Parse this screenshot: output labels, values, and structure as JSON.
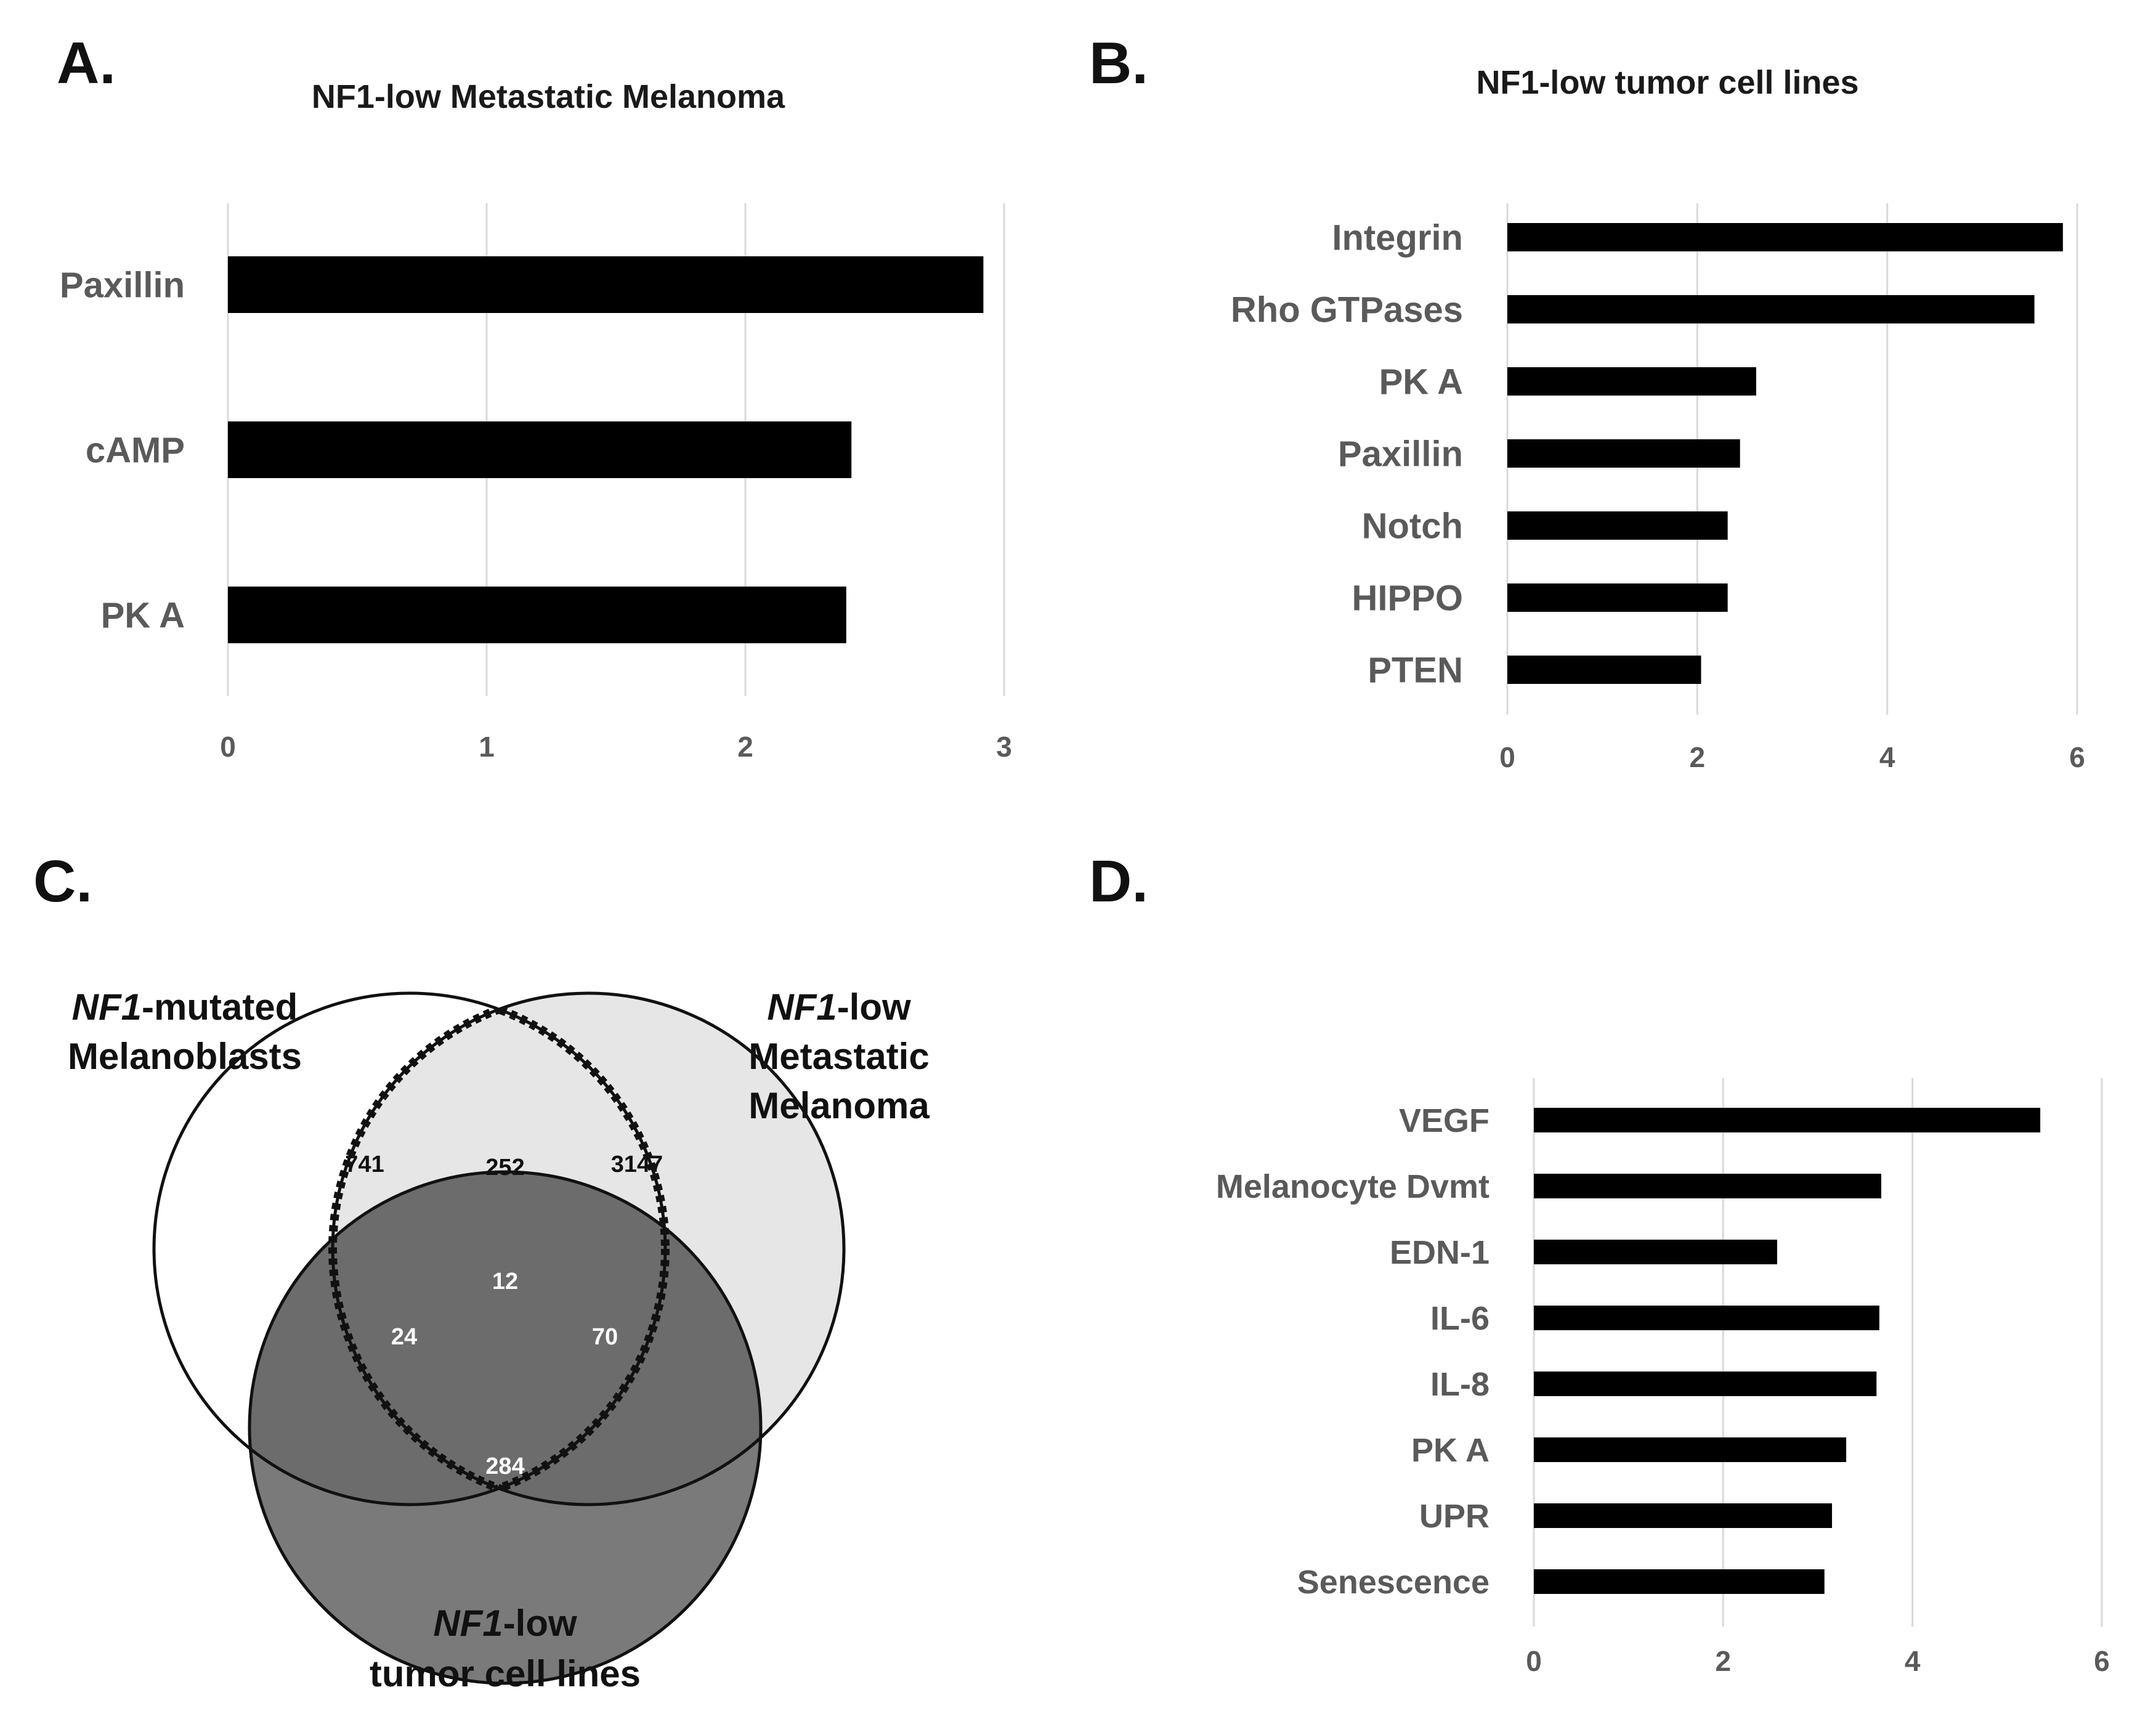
{
  "panels": {
    "a": {
      "letter": "A."
    },
    "b": {
      "letter": "B."
    },
    "c": {
      "letter": "C."
    },
    "d": {
      "letter": "D."
    }
  },
  "chart_data": [
    {
      "id": "a",
      "type": "bar",
      "orientation": "horizontal",
      "title": "NF1-low Metastatic Melanoma",
      "categories": [
        "Paxillin",
        "cAMP",
        "PK A"
      ],
      "values": [
        2.92,
        2.41,
        2.39
      ],
      "xlim": [
        0,
        3
      ],
      "xticks": [
        "0",
        "1",
        "2",
        "3"
      ],
      "grid": true,
      "xlabel": "",
      "ylabel": ""
    },
    {
      "id": "b",
      "type": "bar",
      "orientation": "horizontal",
      "title": "NF1-low tumor cell lines",
      "categories": [
        "Integrin",
        "Rho GTPases",
        "PK A",
        "Paxillin",
        "Notch",
        "HIPPO",
        "PTEN"
      ],
      "values": [
        5.85,
        5.55,
        2.62,
        2.45,
        2.32,
        2.32,
        2.04
      ],
      "xlim": [
        0,
        6
      ],
      "xticks": [
        "0",
        "2",
        "4",
        "6"
      ],
      "grid": true,
      "xlabel": "",
      "ylabel": ""
    },
    {
      "id": "c",
      "type": "venn",
      "sets": [
        {
          "key": "melanoblasts",
          "italic": "NF1",
          "rest": "-mutated",
          "line2": "Melanoblasts",
          "line3": "",
          "color": "#ffffff"
        },
        {
          "key": "melanoma",
          "italic": "NF1",
          "rest": "-low",
          "line2": "Metastatic",
          "line3": "Melanoma",
          "color": "#e6e6e6"
        },
        {
          "key": "cell_lines",
          "italic": "NF1",
          "rest": "-low",
          "line2": "tumor cell lines",
          "line3": "",
          "color": "#7a7a7a"
        }
      ],
      "regions": {
        "melanoblasts_only": "741",
        "melanoblasts_melanoma": "252",
        "melanoma_only": "3147",
        "all_three": "12",
        "melanoblasts_cell_lines": "24",
        "melanoma_cell_lines": "70",
        "cell_lines_only": "284"
      }
    },
    {
      "id": "d",
      "type": "bar",
      "orientation": "horizontal",
      "title": "",
      "categories": [
        "VEGF",
        "Melanocyte Dvmt",
        "EDN-1",
        "IL-6",
        "IL-8",
        "PK A",
        "UPR",
        "Senescence"
      ],
      "values": [
        5.35,
        3.67,
        2.57,
        3.65,
        3.62,
        3.3,
        3.15,
        3.07
      ],
      "xlim": [
        0,
        6
      ],
      "xticks": [
        "0",
        "2",
        "4",
        "6"
      ],
      "grid": true,
      "xlabel": "",
      "ylabel": ""
    }
  ],
  "colors": {
    "bar": "#000000",
    "label_text": "#5a5a5a",
    "grid": "#d9d9d9",
    "title_text": "#1a1a1a",
    "venn_white": "#ffffff",
    "venn_light": "#e6e6e6",
    "venn_dark": "#7a7a7a"
  }
}
